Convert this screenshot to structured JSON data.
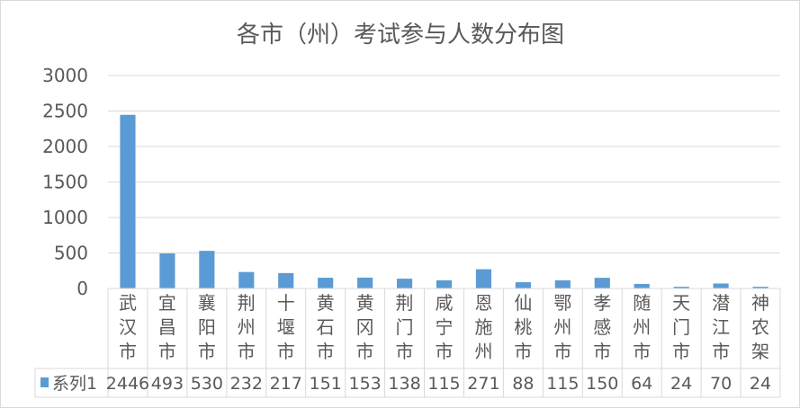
{
  "chart_data": {
    "type": "table",
    "title": "各市（州）考试参与人数分布图",
    "categories": [
      [
        "武",
        "汉",
        "市"
      ],
      [
        "宜",
        "昌",
        "市"
      ],
      [
        "襄",
        "阳",
        "市"
      ],
      [
        "荆",
        "州",
        "市"
      ],
      [
        "十",
        "堰",
        "市"
      ],
      [
        "黄",
        "石",
        "市"
      ],
      [
        "黄",
        "冈",
        "市"
      ],
      [
        "荆",
        "门",
        "市"
      ],
      [
        "咸",
        "宁",
        "市"
      ],
      [
        "恩",
        "施",
        "州"
      ],
      [
        "仙",
        "桃",
        "市"
      ],
      [
        "鄂",
        "州",
        "市"
      ],
      [
        "孝",
        "感",
        "市"
      ],
      [
        "随",
        "州",
        "市"
      ],
      [
        "天",
        "门",
        "市"
      ],
      [
        "潜",
        "江",
        "市"
      ],
      [
        "神",
        "农",
        "架"
      ]
    ],
    "series": [
      {
        "name": "系列1",
        "values": [
          2446,
          493,
          530,
          232,
          217,
          151,
          153,
          138,
          115,
          271,
          88,
          115,
          150,
          64,
          24,
          70,
          24
        ],
        "color": "#5b9bd5"
      }
    ],
    "y_ticks": [
      "0",
      "500",
      "1000",
      "1500",
      "2000",
      "2500",
      "3000"
    ],
    "ylim": [
      0,
      3000
    ],
    "grid": true,
    "legend": "data-table"
  }
}
